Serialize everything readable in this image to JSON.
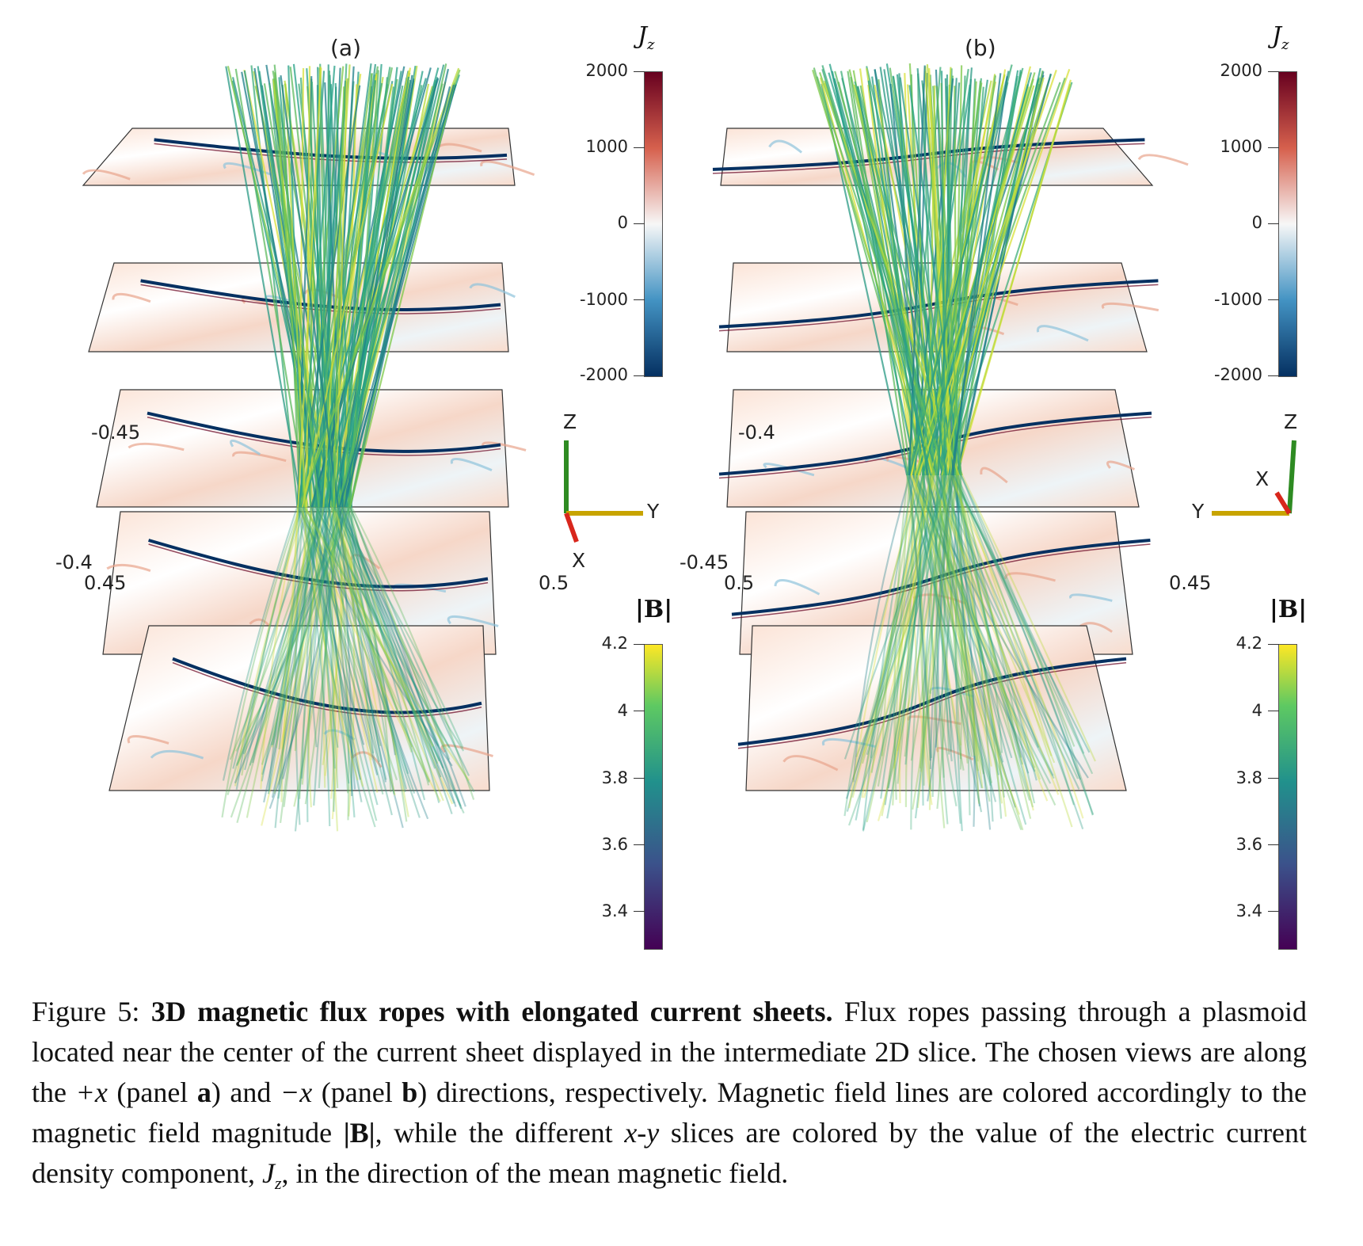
{
  "panels": [
    {
      "label": "(a)",
      "jz_title": "J",
      "jz_sub": "z",
      "jz_ticks": [
        "2000",
        "1000",
        "0",
        "-1000",
        "-2000"
      ],
      "b_title": "|B|",
      "b_ticks": [
        "4.2",
        "4",
        "3.8",
        "3.6",
        "3.4"
      ],
      "axis_values": {
        "top_y": "-0.45",
        "bottom_y": "-0.4",
        "left_x": "0.45",
        "right_x": "0.5"
      },
      "triad": {
        "z": "Z",
        "y": "Y",
        "x": "X"
      }
    },
    {
      "label": "(b)",
      "jz_title": "J",
      "jz_sub": "z",
      "jz_ticks": [
        "2000",
        "1000",
        "0",
        "-1000",
        "-2000"
      ],
      "b_title": "|B|",
      "b_ticks": [
        "4.2",
        "4",
        "3.8",
        "3.6",
        "3.4"
      ],
      "axis_values": {
        "top_y": "-0.4",
        "bottom_y": "-0.45",
        "left_x": "0.5",
        "right_x": "0.45"
      },
      "triad": {
        "z": "Z",
        "y": "Y",
        "x": "X"
      }
    }
  ],
  "colors": {
    "jz_positive": "#67001f",
    "jz_zero": "#f7f7f7",
    "jz_negative": "#053061",
    "b_high": "#fde725",
    "b_mid": "#21918c",
    "b_low": "#440154",
    "triad_z": "#2e8b22",
    "triad_y": "#c8a400",
    "triad_x": "#d8261c"
  },
  "caption": {
    "figure_label": "Figure 5:",
    "title": "3D magnetic flux ropes with elongated current sheets.",
    "s1": "Flux ropes passing through a plasmoid located near the center of the current sheet displayed in the intermediate 2D slice. The chosen views are along the",
    "plus_x": "+x",
    "s2": "(panel",
    "a": "a",
    "s3": ") and",
    "minus_x": "−x",
    "s4": "(panel",
    "b": "b",
    "s5": ") directions, respectively. Magnetic field lines are colored accordingly to the magnetic field magnitude",
    "absB": "|B|",
    "s6": ", while the different",
    "xy": "x-y",
    "s7": "slices are colored by the value of the electric current density component,",
    "jz": "J",
    "jz_sub": "z",
    "s8": ", in the direction of the mean magnetic field."
  }
}
